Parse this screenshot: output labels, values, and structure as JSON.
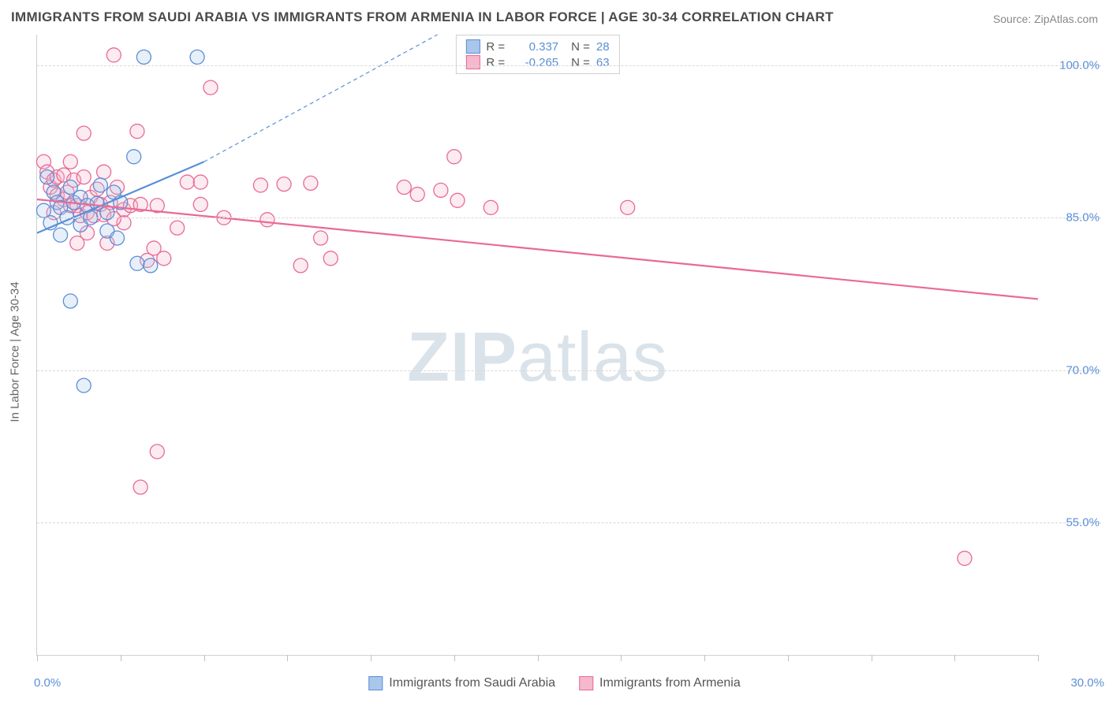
{
  "title": "IMMIGRANTS FROM SAUDI ARABIA VS IMMIGRANTS FROM ARMENIA IN LABOR FORCE | AGE 30-34 CORRELATION CHART",
  "source_label": "Source: ZipAtlas.com",
  "y_axis_label": "In Labor Force | Age 30-34",
  "watermark_bold": "ZIP",
  "watermark_light": "atlas",
  "chart": {
    "type": "scatter",
    "xlim": [
      0,
      30
    ],
    "ylim": [
      42,
      103
    ],
    "x_ticks_minor": [
      0,
      2.5,
      5,
      7.5,
      10,
      12.5,
      15,
      17.5,
      20,
      22.5,
      25,
      27.5,
      30
    ],
    "x_min_label": "0.0%",
    "x_max_label": "30.0%",
    "y_gridlines": [
      55,
      70,
      85,
      100
    ],
    "y_tick_labels": [
      "55.0%",
      "70.0%",
      "85.0%",
      "100.0%"
    ],
    "background_color": "#ffffff",
    "grid_color": "#d8d8d8",
    "axis_color": "#d0d0d0",
    "label_color": "#5b8fd6",
    "marker_radius": 9,
    "marker_stroke_width": 1.3,
    "marker_fill_opacity": 0.28,
    "trend_line_width": 2.2,
    "trend_dash": "5,4"
  },
  "series": [
    {
      "name": "Immigrants from Saudi Arabia",
      "color_stroke": "#5b8fd6",
      "color_fill": "#a9c6eb",
      "R": "0.337",
      "N": "28",
      "trend_solid": {
        "x1": 0,
        "y1": 83.5,
        "x2": 5,
        "y2": 90.5
      },
      "trend_dash": {
        "x1": 5,
        "y1": 90.5,
        "x2": 12,
        "y2": 103
      },
      "points": [
        {
          "x": 3.2,
          "y": 100.8
        },
        {
          "x": 4.8,
          "y": 100.8
        },
        {
          "x": 0.3,
          "y": 89
        },
        {
          "x": 0.5,
          "y": 87.5
        },
        {
          "x": 0.6,
          "y": 86.5
        },
        {
          "x": 0.7,
          "y": 86
        },
        {
          "x": 0.9,
          "y": 85
        },
        {
          "x": 1.0,
          "y": 88
        },
        {
          "x": 1.1,
          "y": 86.5
        },
        {
          "x": 1.3,
          "y": 87
        },
        {
          "x": 1.3,
          "y": 84.3
        },
        {
          "x": 1.5,
          "y": 86.2
        },
        {
          "x": 1.6,
          "y": 85
        },
        {
          "x": 1.8,
          "y": 86.4
        },
        {
          "x": 1.9,
          "y": 88.2
        },
        {
          "x": 2.1,
          "y": 85.5
        },
        {
          "x": 2.1,
          "y": 83.7
        },
        {
          "x": 2.3,
          "y": 87.5
        },
        {
          "x": 2.5,
          "y": 86.5
        },
        {
          "x": 2.4,
          "y": 83
        },
        {
          "x": 2.9,
          "y": 91
        },
        {
          "x": 3.0,
          "y": 80.5
        },
        {
          "x": 3.4,
          "y": 80.3
        },
        {
          "x": 1.0,
          "y": 76.8
        },
        {
          "x": 1.4,
          "y": 68.5
        },
        {
          "x": 0.2,
          "y": 85.7
        },
        {
          "x": 0.4,
          "y": 84.5
        },
        {
          "x": 0.7,
          "y": 83.3
        }
      ]
    },
    {
      "name": "Immigrants from Armenia",
      "color_stroke": "#e96a94",
      "color_fill": "#f5b8cd",
      "R": "-0.265",
      "N": "63",
      "trend_solid": {
        "x1": 0,
        "y1": 86.8,
        "x2": 30,
        "y2": 77
      },
      "trend_dash": null,
      "points": [
        {
          "x": 2.3,
          "y": 101
        },
        {
          "x": 5.2,
          "y": 97.8
        },
        {
          "x": 3.0,
          "y": 93.5
        },
        {
          "x": 4.5,
          "y": 88.5
        },
        {
          "x": 4.9,
          "y": 88.5
        },
        {
          "x": 6.7,
          "y": 88.2
        },
        {
          "x": 7.4,
          "y": 88.3
        },
        {
          "x": 8.2,
          "y": 88.4
        },
        {
          "x": 11.0,
          "y": 88
        },
        {
          "x": 11.4,
          "y": 87.3
        },
        {
          "x": 12.1,
          "y": 87.7
        },
        {
          "x": 12.6,
          "y": 86.7
        },
        {
          "x": 13.6,
          "y": 86
        },
        {
          "x": 17.7,
          "y": 86
        },
        {
          "x": 12.5,
          "y": 91
        },
        {
          "x": 4.9,
          "y": 86.3
        },
        {
          "x": 5.6,
          "y": 85
        },
        {
          "x": 6.9,
          "y": 84.8
        },
        {
          "x": 8.5,
          "y": 83
        },
        {
          "x": 8.8,
          "y": 81
        },
        {
          "x": 7.9,
          "y": 80.3
        },
        {
          "x": 3.3,
          "y": 80.8
        },
        {
          "x": 3.5,
          "y": 82
        },
        {
          "x": 4.2,
          "y": 84
        },
        {
          "x": 2.6,
          "y": 84.5
        },
        {
          "x": 2.1,
          "y": 82.5
        },
        {
          "x": 0.2,
          "y": 90.5
        },
        {
          "x": 0.3,
          "y": 89.5
        },
        {
          "x": 0.4,
          "y": 88
        },
        {
          "x": 0.5,
          "y": 88.7
        },
        {
          "x": 0.6,
          "y": 89
        },
        {
          "x": 0.6,
          "y": 87.2
        },
        {
          "x": 0.8,
          "y": 89.2
        },
        {
          "x": 0.8,
          "y": 86.8
        },
        {
          "x": 0.9,
          "y": 87.5
        },
        {
          "x": 1.0,
          "y": 90.5
        },
        {
          "x": 1.0,
          "y": 86.2
        },
        {
          "x": 1.1,
          "y": 88.7
        },
        {
          "x": 1.2,
          "y": 86.2
        },
        {
          "x": 1.3,
          "y": 85.2
        },
        {
          "x": 1.4,
          "y": 89
        },
        {
          "x": 1.5,
          "y": 85.5
        },
        {
          "x": 1.5,
          "y": 83.5
        },
        {
          "x": 1.6,
          "y": 87
        },
        {
          "x": 1.7,
          "y": 85.2
        },
        {
          "x": 1.8,
          "y": 87.8
        },
        {
          "x": 1.9,
          "y": 86.3
        },
        {
          "x": 2.0,
          "y": 85.3
        },
        {
          "x": 2.0,
          "y": 89.5
        },
        {
          "x": 2.2,
          "y": 86.5
        },
        {
          "x": 2.3,
          "y": 84.9
        },
        {
          "x": 2.4,
          "y": 88
        },
        {
          "x": 2.6,
          "y": 85.8
        },
        {
          "x": 2.8,
          "y": 86.2
        },
        {
          "x": 3.1,
          "y": 86.3
        },
        {
          "x": 3.6,
          "y": 86.2
        },
        {
          "x": 3.8,
          "y": 81
        },
        {
          "x": 1.2,
          "y": 82.5
        },
        {
          "x": 1.4,
          "y": 93.3
        },
        {
          "x": 3.6,
          "y": 62
        },
        {
          "x": 3.1,
          "y": 58.5
        },
        {
          "x": 27.8,
          "y": 51.5
        },
        {
          "x": 0.5,
          "y": 85.5
        }
      ]
    }
  ],
  "legend_top": {
    "r_label": "R =",
    "n_label": "N ="
  },
  "legend_bottom": {
    "items": [
      "Immigrants from Saudi Arabia",
      "Immigrants from Armenia"
    ]
  }
}
